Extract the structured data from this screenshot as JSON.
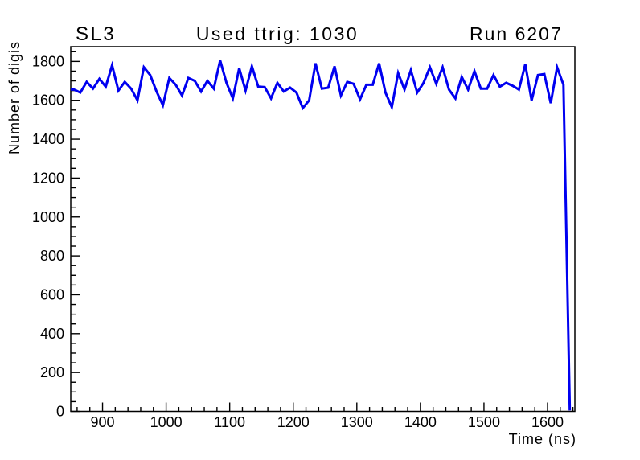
{
  "page": {
    "background": "#ffffff",
    "axis_color": "#000000",
    "text_color": "#000000"
  },
  "chart_data": {
    "type": "line",
    "title": "Used ttrig: 1030",
    "annotations": {
      "left": "SL3",
      "right": "Run 6207"
    },
    "xlabel": "Time (ns)",
    "ylabel": "Number of digis",
    "xlim": [
      850,
      1643
    ],
    "ylim": [
      0,
      1876
    ],
    "x_major_ticks": [
      900,
      1000,
      1100,
      1200,
      1300,
      1400,
      1500,
      1600
    ],
    "x_minor_step": 20,
    "y_major_ticks": [
      0,
      200,
      400,
      600,
      800,
      1000,
      1200,
      1400,
      1600,
      1800
    ],
    "y_minor_step": 50,
    "grid": false,
    "legend": false,
    "line_color": "#0000f0",
    "x": [
      855,
      865,
      875,
      885,
      895,
      905,
      915,
      925,
      935,
      945,
      955,
      965,
      975,
      985,
      995,
      1005,
      1015,
      1025,
      1035,
      1045,
      1055,
      1065,
      1075,
      1085,
      1095,
      1105,
      1115,
      1125,
      1135,
      1145,
      1155,
      1165,
      1175,
      1185,
      1195,
      1205,
      1215,
      1225,
      1235,
      1245,
      1255,
      1265,
      1275,
      1285,
      1295,
      1305,
      1315,
      1325,
      1335,
      1345,
      1355,
      1365,
      1375,
      1385,
      1395,
      1405,
      1415,
      1425,
      1435,
      1445,
      1455,
      1465,
      1475,
      1485,
      1495,
      1505,
      1515,
      1525,
      1535,
      1545,
      1555,
      1565,
      1575,
      1585,
      1595,
      1605,
      1615,
      1625,
      1635
    ],
    "y": [
      1655,
      1640,
      1695,
      1660,
      1710,
      1670,
      1780,
      1650,
      1695,
      1660,
      1600,
      1770,
      1730,
      1645,
      1575,
      1715,
      1680,
      1625,
      1715,
      1700,
      1645,
      1700,
      1660,
      1805,
      1690,
      1610,
      1765,
      1650,
      1775,
      1670,
      1668,
      1610,
      1690,
      1645,
      1665,
      1640,
      1560,
      1600,
      1790,
      1660,
      1665,
      1775,
      1625,
      1695,
      1685,
      1605,
      1680,
      1680,
      1790,
      1640,
      1565,
      1740,
      1655,
      1755,
      1640,
      1690,
      1770,
      1685,
      1770,
      1655,
      1610,
      1720,
      1655,
      1750,
      1660,
      1660,
      1730,
      1670,
      1690,
      1675,
      1655,
      1785,
      1600,
      1730,
      1735,
      1585,
      1770,
      1680,
      5
    ]
  }
}
